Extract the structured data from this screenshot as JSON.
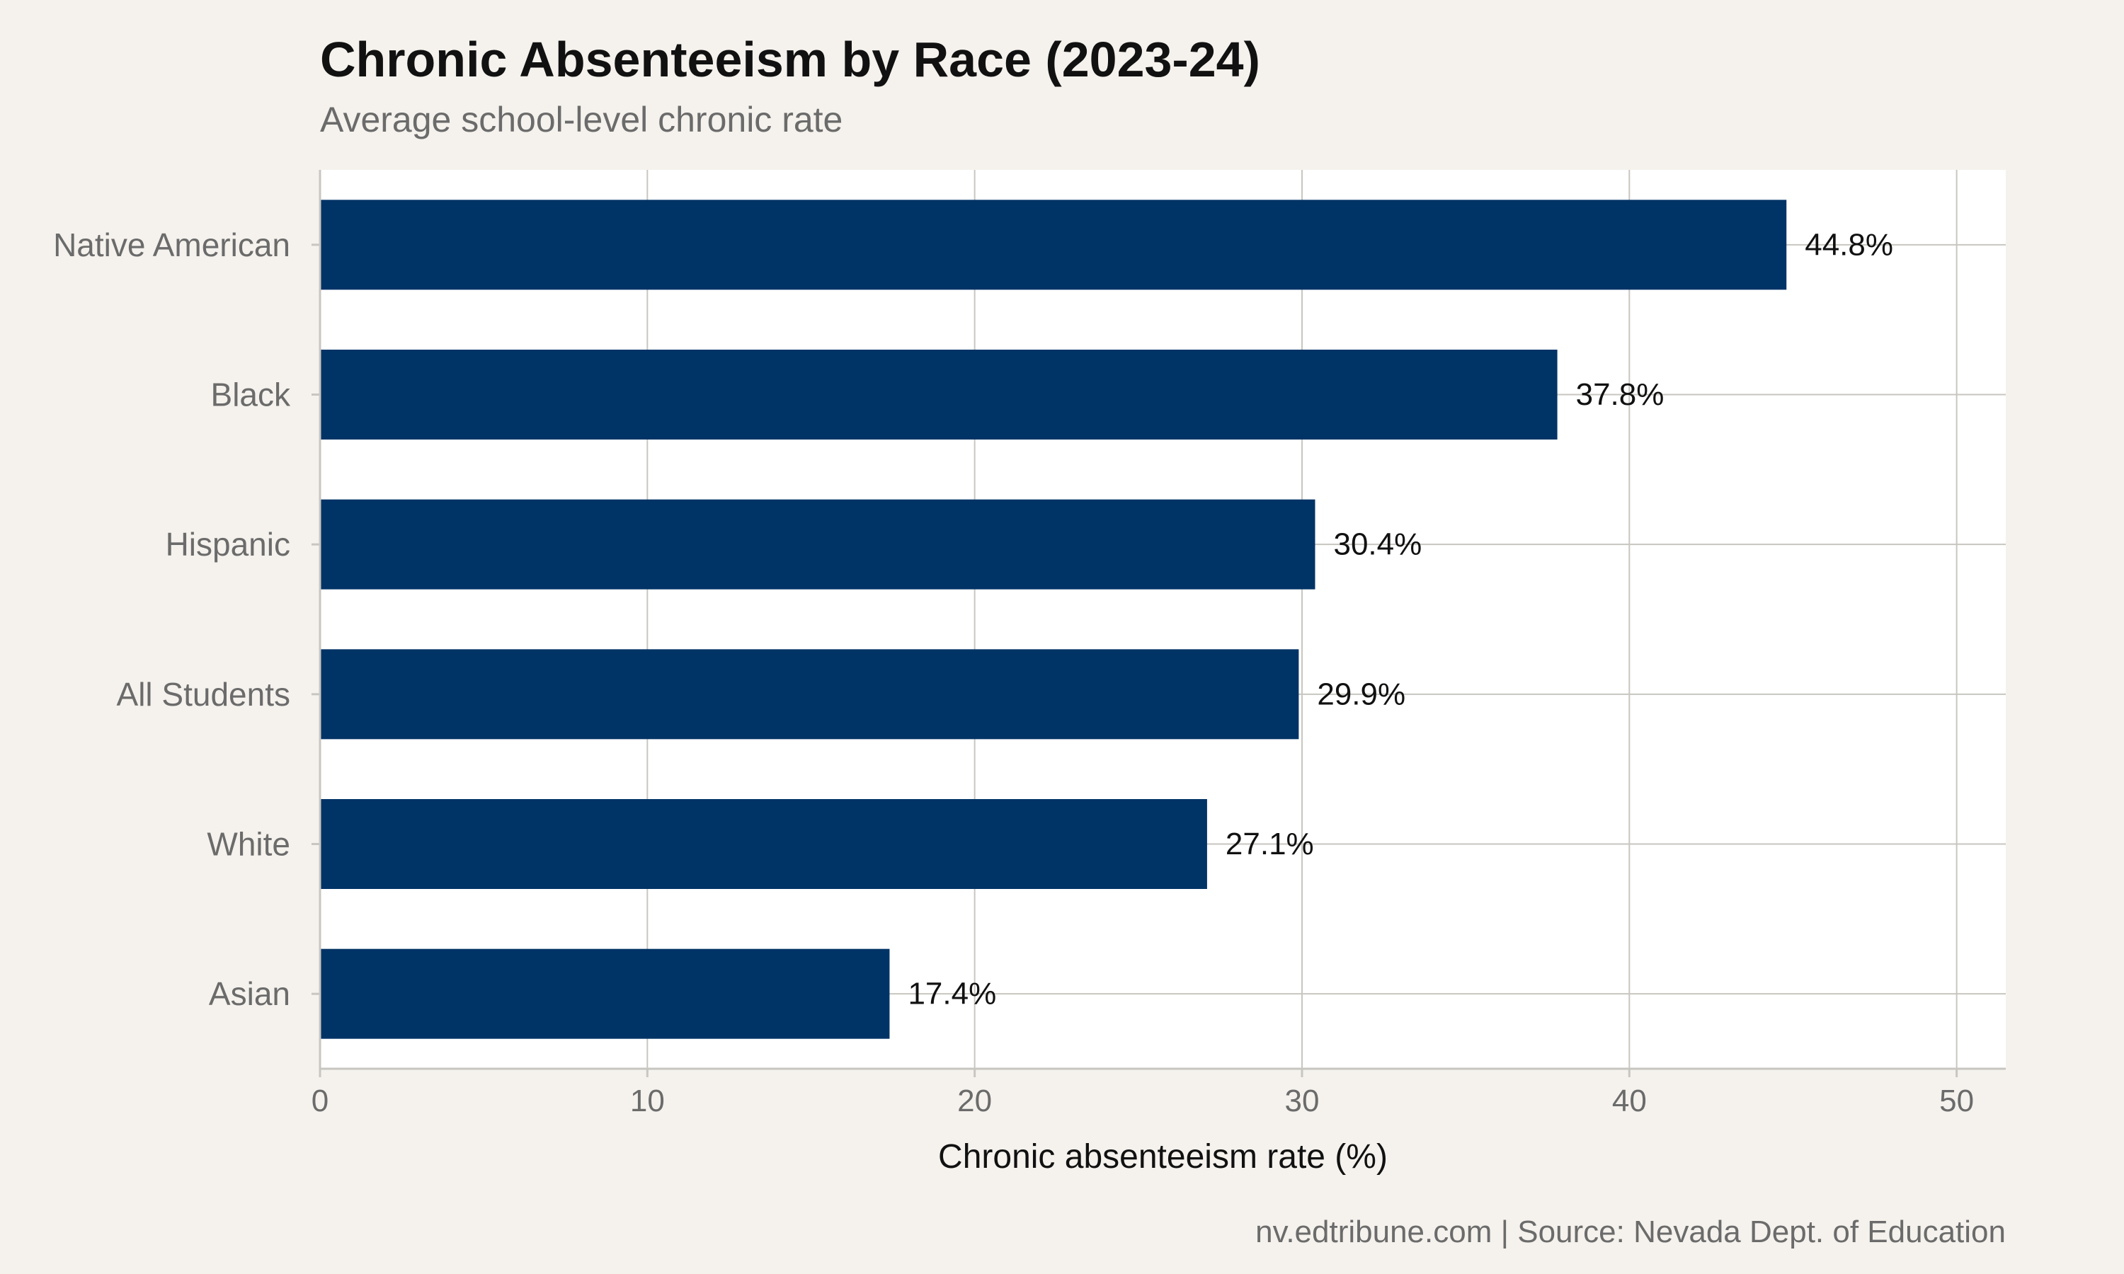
{
  "title": "Chronic Absenteeism by Race (2023-24)",
  "subtitle": "Average school-level chronic rate",
  "caption": "nv.edtribune.com | Source: Nevada Dept. of Education",
  "colors": {
    "bar": "#003366",
    "panel": "#ffffff",
    "background": "#f5f2ed",
    "grid": "#c8c6c0",
    "axis_text": "#6b6b6b",
    "label_text": "#111111"
  },
  "chart_data": {
    "type": "bar",
    "orientation": "horizontal",
    "categories": [
      "Native American",
      "Black",
      "Hispanic",
      "All Students",
      "White",
      "Asian"
    ],
    "values": [
      44.8,
      37.8,
      30.4,
      29.9,
      27.1,
      17.4
    ],
    "data_labels": [
      "44.8%",
      "37.8%",
      "30.4%",
      "29.9%",
      "27.1%",
      "17.4%"
    ],
    "xlabel": "Chronic absenteeism rate (%)",
    "ylabel": "",
    "xlim": [
      0,
      51.5
    ],
    "xticks": [
      0,
      10,
      20,
      30,
      40,
      50
    ],
    "xtick_labels": [
      "0",
      "10",
      "20",
      "30",
      "40",
      "50"
    ],
    "grid": true,
    "legend": "none"
  }
}
